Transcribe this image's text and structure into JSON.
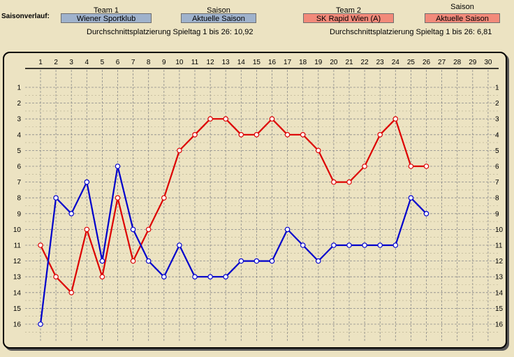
{
  "header": {
    "section_label": "Saisonverlauf:",
    "team1": {
      "title": "Team 1",
      "name": "Wiener Sportklub",
      "avg_text": "Durchschnittsplatzierung Spieltag 1 bis 26: 10,92"
    },
    "season1": {
      "title": "Saison",
      "value": "Aktuelle Saison"
    },
    "team2": {
      "title": "Team 2",
      "name": "SK Rapid Wien (A)",
      "avg_text": "Durchschnittsplatzierung Spieltag 1 bis 26:  6,81"
    },
    "season2": {
      "title": "Saison",
      "value": "Aktuelle Saison"
    }
  },
  "colors": {
    "team1": "#0000cc",
    "team2": "#dd0000",
    "grid": "#8a8a8a"
  },
  "chart_data": {
    "type": "line",
    "x": [
      1,
      2,
      3,
      4,
      5,
      6,
      7,
      8,
      9,
      10,
      11,
      12,
      13,
      14,
      15,
      16,
      17,
      18,
      19,
      20,
      21,
      22,
      23,
      24,
      25,
      26
    ],
    "xlim": [
      1,
      30
    ],
    "ylim": [
      1,
      16
    ],
    "y_inverted": true,
    "grid": true,
    "x_ticks": [
      "1",
      "2",
      "3",
      "4",
      "5",
      "6",
      "7",
      "8",
      "9",
      "10",
      "11",
      "12",
      "13",
      "14",
      "15",
      "16",
      "17",
      "18",
      "19",
      "20",
      "21",
      "22",
      "23",
      "24",
      "25",
      "26",
      "27",
      "28",
      "29",
      "30"
    ],
    "y_ticks": [
      "1",
      "2",
      "3",
      "4",
      "5",
      "6",
      "7",
      "8",
      "9",
      "10",
      "11",
      "12",
      "13",
      "14",
      "15",
      "16"
    ],
    "series": [
      {
        "name": "Wiener Sportklub",
        "color": "#0000cc",
        "values": [
          16,
          8,
          9,
          7,
          12,
          6,
          10,
          12,
          13,
          11,
          13,
          13,
          13,
          12,
          12,
          12,
          10,
          11,
          12,
          11,
          11,
          11,
          11,
          11,
          8,
          9
        ]
      },
      {
        "name": "SK Rapid Wien (A)",
        "color": "#dd0000",
        "values": [
          11,
          13,
          14,
          10,
          13,
          8,
          12,
          10,
          8,
          5,
          4,
          3,
          3,
          4,
          4,
          3,
          4,
          4,
          5,
          7,
          7,
          6,
          4,
          3,
          6,
          6
        ]
      }
    ]
  }
}
